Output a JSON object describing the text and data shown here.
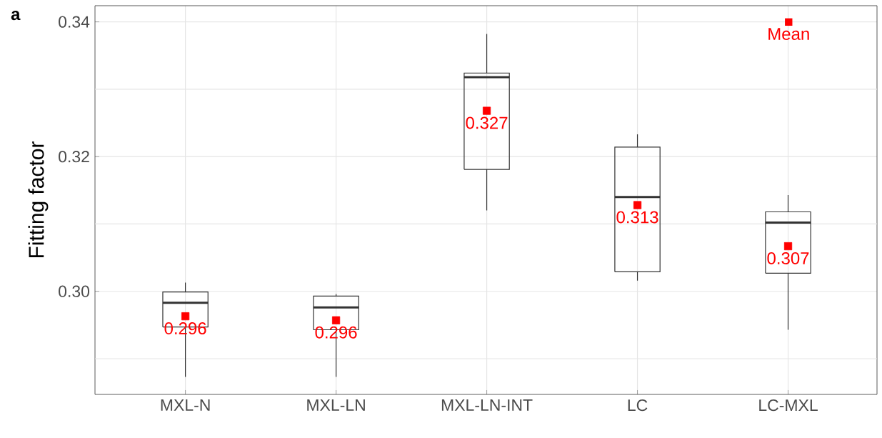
{
  "chart_data": {
    "type": "box",
    "title": "a",
    "ylabel": "Fitting factor",
    "categories": [
      "MXL-N",
      "MXL-LN",
      "MXL-LN-INT",
      "LC",
      "LC-MXL"
    ],
    "color": "#333333",
    "boxes": [
      {
        "low": 0.2873,
        "q1": 0.2947,
        "median": 0.2983,
        "q3": 0.2999,
        "high": 0.3013
      },
      {
        "low": 0.2873,
        "q1": 0.2943,
        "median": 0.2976,
        "q3": 0.2993,
        "high": 0.2996
      },
      {
        "low": 0.312,
        "q1": 0.3181,
        "median": 0.3318,
        "q3": 0.3324,
        "high": 0.3382
      },
      {
        "low": 0.3016,
        "q1": 0.3029,
        "median": 0.314,
        "q3": 0.3214,
        "high": 0.3233
      },
      {
        "low": 0.2943,
        "q1": 0.3027,
        "median": 0.3102,
        "q3": 0.3118,
        "high": 0.3143
      }
    ],
    "series": [
      {
        "type": "scatter",
        "name": "Mean",
        "color": "#ff0000",
        "marker": "square",
        "values": [
          0.2963,
          0.2957,
          0.3268,
          0.3128,
          0.3067
        ],
        "value_labels": [
          "0.296",
          "0.296",
          "0.327",
          "0.313",
          "0.307"
        ]
      }
    ],
    "ylim": [
      0.2847,
      0.3424
    ],
    "yticks": [
      {
        "value": 0.29,
        "label": null
      },
      {
        "value": 0.3,
        "label": "0.30"
      },
      {
        "value": 0.31,
        "label": null
      },
      0.32,
      {
        "value": 0.33,
        "label": null
      },
      0.34
    ],
    "grid": true,
    "legend": "top right"
  }
}
